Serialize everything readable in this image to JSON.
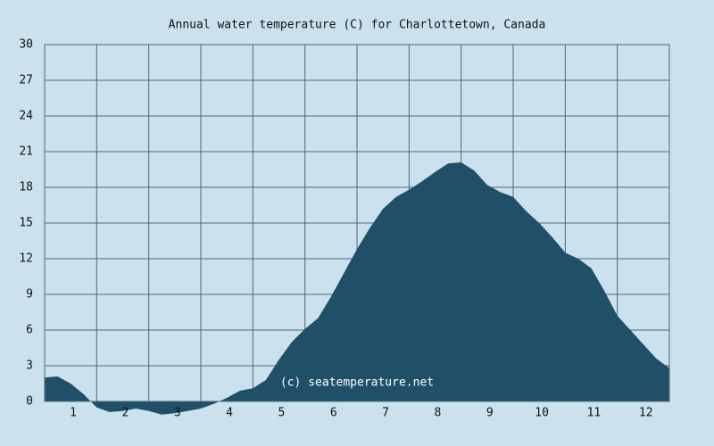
{
  "chart_data": {
    "type": "area",
    "title": "Annual water temperature (C) for Charlottetown, Canada",
    "annotation": "(c) seatemperature.net",
    "categories": [
      "1",
      "2",
      "3",
      "4",
      "5",
      "6",
      "7",
      "8",
      "9",
      "10",
      "11",
      "12"
    ],
    "xlim": [
      0,
      12
    ],
    "x": [
      0,
      0.25,
      0.5,
      0.75,
      1,
      1.25,
      1.5,
      1.75,
      2,
      2.25,
      2.5,
      2.75,
      3,
      3.25,
      3.5,
      3.75,
      4,
      4.25,
      4.5,
      4.75,
      5,
      5.25,
      5.5,
      5.75,
      6,
      6.25,
      6.5,
      6.75,
      7,
      7.25,
      7.5,
      7.75,
      8,
      8.25,
      8.5,
      8.75,
      9,
      9.25,
      9.5,
      9.75,
      10,
      10.25,
      10.5,
      10.75,
      11,
      11.25,
      11.5,
      11.75,
      12
    ],
    "values": [
      2.0,
      2.1,
      1.5,
      0.6,
      -0.5,
      -0.9,
      -0.8,
      -0.6,
      -0.8,
      -1.1,
      -1.0,
      -0.8,
      -0.6,
      -0.2,
      0.3,
      0.9,
      1.1,
      1.8,
      3.5,
      5.0,
      6.1,
      7.0,
      8.8,
      10.8,
      12.8,
      14.6,
      16.2,
      17.2,
      17.8,
      18.5,
      19.3,
      20.0,
      20.1,
      19.4,
      18.2,
      17.6,
      17.2,
      16.0,
      15.0,
      13.8,
      12.5,
      12.0,
      11.2,
      9.3,
      7.2,
      6.0,
      4.8,
      3.6,
      2.8
    ],
    "color": "#1f5068",
    "ylim": [
      0,
      30
    ],
    "yticks": [
      0,
      3,
      6,
      9,
      12,
      15,
      18,
      21,
      24,
      27,
      30
    ],
    "grid": true
  }
}
